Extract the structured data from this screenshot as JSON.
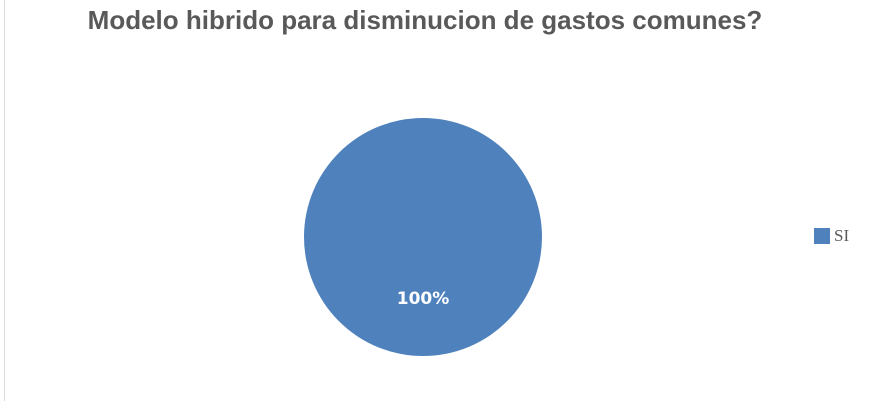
{
  "chart_data": {
    "type": "pie",
    "title": "Modelo hibrido para disminucion de gastos comunes?",
    "categories": [
      "SI"
    ],
    "values": [
      100
    ],
    "data_labels": [
      "100%"
    ],
    "legend_position": "right",
    "colors": [
      "#4f81bd"
    ]
  }
}
